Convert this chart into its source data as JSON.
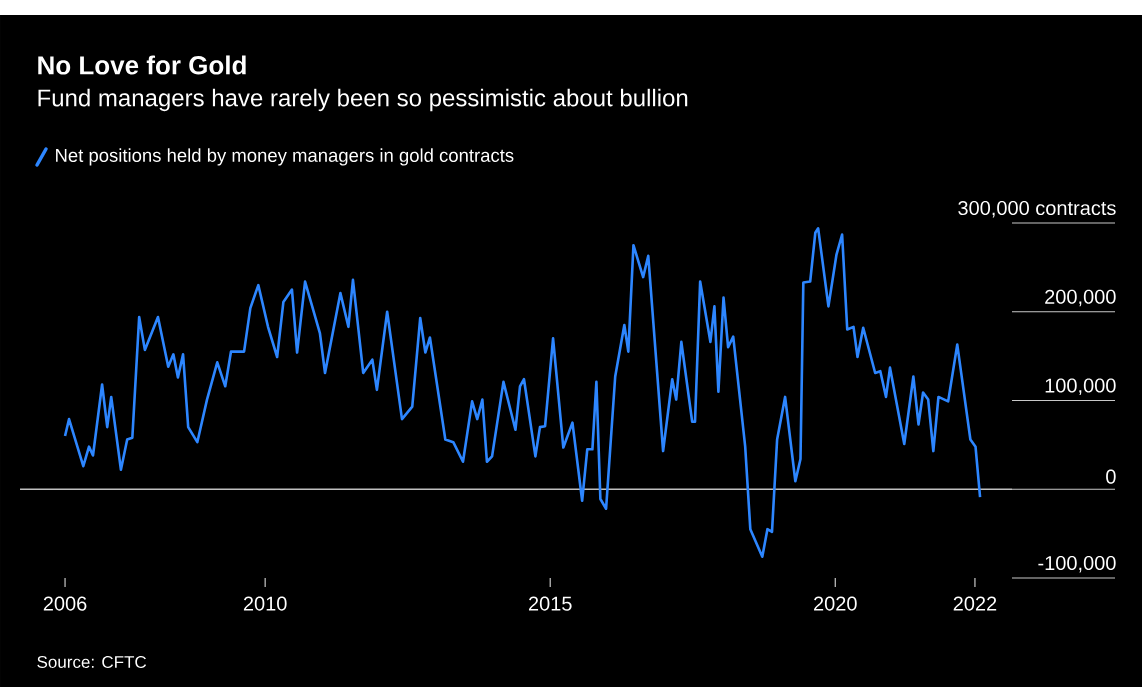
{
  "chart_data": {
    "type": "line",
    "title": "No Love for Gold",
    "subtitle": "Fund managers have rarely been so pessimistic about bullion",
    "annotations": [
      "Source: CFTC"
    ],
    "legend": "top",
    "marker": "none",
    "line_style": "solid",
    "xlim": [
      2005.7,
      2023.1
    ],
    "xticks": [
      {
        "value": 2006.49,
        "label": "2006"
      },
      2010,
      2015,
      2020,
      {
        "value": 2022.45,
        "label": "2022"
      }
    ],
    "ylim": [
      -100000,
      300000
    ],
    "yticks": [
      {
        "value": -100000,
        "label": "-100,000"
      },
      0,
      {
        "value": 100000,
        "label": "100,000"
      },
      {
        "value": 200000,
        "label": "200,000"
      },
      {
        "value": 300000,
        "label": "300,000 contracts"
      }
    ],
    "ref_lines": [
      {
        "axis": "y",
        "value": 0,
        "color": "#bfbfbf"
      }
    ],
    "series": [
      {
        "name": "Net positions held by money managers in gold contracts",
        "color": "#2d86ff",
        "x": [
          2006.49,
          2006.56,
          2006.81,
          2006.91,
          2006.98,
          2007.14,
          2007.23,
          2007.3,
          2007.47,
          2007.58,
          2007.67,
          2007.79,
          2007.89,
          2008.12,
          2008.3,
          2008.39,
          2008.47,
          2008.56,
          2008.65,
          2008.81,
          2008.98,
          2009.16,
          2009.3,
          2009.4,
          2009.63,
          2009.74,
          2009.88,
          2010.05,
          2010.21,
          2010.32,
          2010.47,
          2010.56,
          2010.7,
          2010.96,
          2011.05,
          2011.32,
          2011.46,
          2011.54,
          2011.72,
          2011.88,
          2011.96,
          2012.14,
          2012.4,
          2012.58,
          2012.72,
          2012.81,
          2012.89,
          2013.16,
          2013.3,
          2013.47,
          2013.63,
          2013.72,
          2013.81,
          2013.89,
          2013.98,
          2014.18,
          2014.39,
          2014.47,
          2014.54,
          2014.74,
          2014.82,
          2014.91,
          2015.05,
          2015.23,
          2015.39,
          2015.56,
          2015.65,
          2015.74,
          2015.81,
          2015.88,
          2015.98,
          2016.14,
          2016.3,
          2016.37,
          2016.46,
          2016.63,
          2016.72,
          2016.98,
          2017.14,
          2017.21,
          2017.3,
          2017.49,
          2017.54,
          2017.63,
          2017.81,
          2017.88,
          2017.95,
          2018.04,
          2018.12,
          2018.21,
          2018.42,
          2018.51,
          2018.72,
          2018.81,
          2018.89,
          2018.98,
          2019.12,
          2019.3,
          2019.39,
          2019.44,
          2019.56,
          2019.65,
          2019.7,
          2019.88,
          2020.02,
          2020.12,
          2020.21,
          2020.32,
          2020.39,
          2020.49,
          2020.7,
          2020.79,
          2020.89,
          2020.96,
          2021.21,
          2021.37,
          2021.46,
          2021.54,
          2021.63,
          2021.72,
          2021.81,
          2021.98,
          2022.14,
          2022.37,
          2022.46,
          2022.54
        ],
        "values": [
          60000,
          79000,
          26000,
          48000,
          38000,
          118000,
          70000,
          104000,
          22000,
          56000,
          58000,
          194000,
          157000,
          194000,
          138000,
          152000,
          126000,
          152000,
          70000,
          53000,
          101000,
          143000,
          116000,
          155000,
          155000,
          204000,
          230000,
          183000,
          149000,
          211000,
          225000,
          154000,
          234000,
          176000,
          131000,
          221000,
          183000,
          236000,
          131000,
          146000,
          112000,
          200000,
          79000,
          93000,
          193000,
          154000,
          171000,
          56000,
          53000,
          31000,
          99000,
          79000,
          101000,
          31000,
          37000,
          121000,
          67000,
          116000,
          124000,
          37000,
          70000,
          71000,
          170000,
          47000,
          75000,
          -13000,
          45000,
          45000,
          121000,
          -11000,
          -22000,
          127000,
          185000,
          155000,
          275000,
          239000,
          263000,
          43000,
          124000,
          101000,
          166000,
          76000,
          76000,
          234000,
          166000,
          206000,
          110000,
          216000,
          160000,
          172000,
          48000,
          -45000,
          -76000,
          -45000,
          -48000,
          56000,
          104000,
          9000,
          34000,
          233000,
          234000,
          289000,
          294000,
          206000,
          264000,
          287000,
          180000,
          183000,
          149000,
          182000,
          131000,
          133000,
          104000,
          137000,
          51000,
          127000,
          73000,
          109000,
          101000,
          43000,
          104000,
          99000,
          163000,
          56000,
          48000,
          -9000
        ]
      }
    ]
  }
}
